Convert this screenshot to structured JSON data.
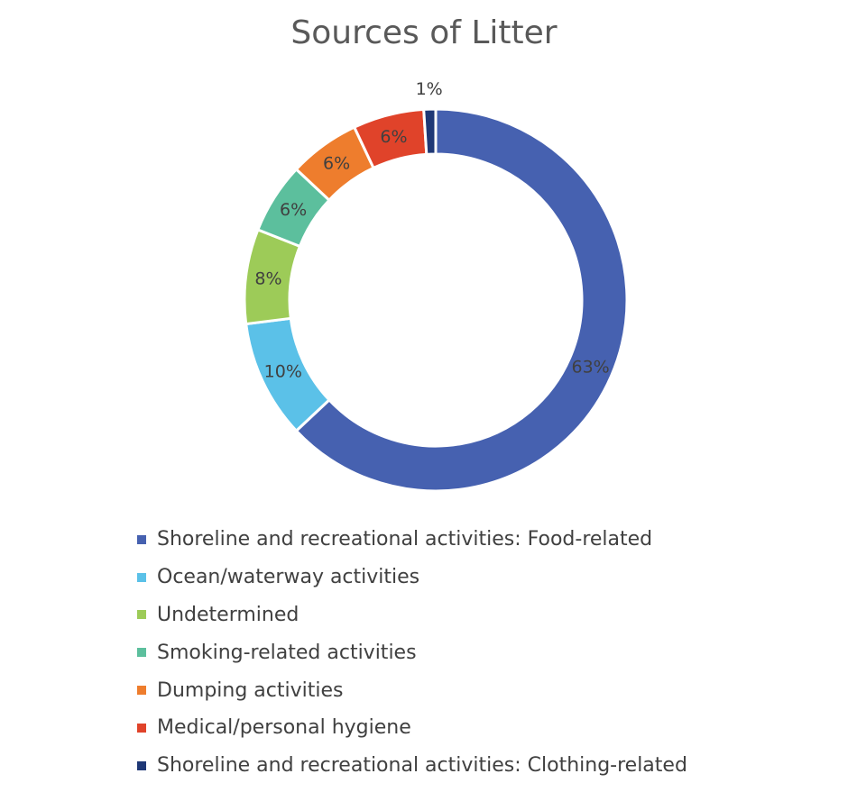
{
  "chart_data": {
    "type": "pie",
    "style": "donut",
    "title": "Sources of Litter",
    "slices": [
      {
        "label": "Shoreline and recreational activities: Food-related",
        "value": 63,
        "display": "63%",
        "color": "#4661B0"
      },
      {
        "label": "Ocean/waterway activities",
        "value": 10,
        "display": "10%",
        "color": "#5BC1E8"
      },
      {
        "label": "Undetermined",
        "value": 8,
        "display": "8%",
        "color": "#9DCB58"
      },
      {
        "label": "Smoking-related activities",
        "value": 6,
        "display": "6%",
        "color": "#5CBF9D"
      },
      {
        "label": "Dumping activities",
        "value": 6,
        "display": "6%",
        "color": "#EE7D2D"
      },
      {
        "label": "Medical/personal hygiene",
        "value": 6,
        "display": "6%",
        "color": "#E0432A"
      },
      {
        "label": "Shoreline and recreational activities: Clothing-related",
        "value": 1,
        "display": "1%",
        "color": "#1F3876"
      }
    ],
    "legend_position": "bottom"
  }
}
